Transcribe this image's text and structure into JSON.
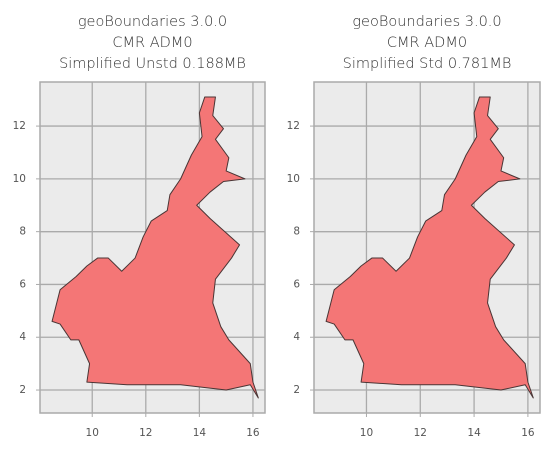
{
  "chart_data": [
    {
      "type": "map",
      "title": [
        "geoBoundaries 3.0.0",
        "CMR ADM0",
        "Simplified Unstd 0.188MB"
      ],
      "xlim": [
        8.05,
        16.45
      ],
      "ylim": [
        1.13,
        13.67
      ],
      "xticks": [
        10,
        12,
        14,
        16
      ],
      "yticks": [
        2,
        4,
        6,
        8,
        10,
        12
      ],
      "grid": true,
      "color": "#f47676",
      "boundary": {
        "x": [
          14.2,
          14.6,
          14.5,
          14.9,
          14.6,
          15.1,
          15.0,
          15.7,
          14.9,
          14.4,
          13.9,
          14.4,
          15.5,
          15.2,
          14.6,
          14.5,
          14.8,
          15.1,
          15.9,
          16.0,
          16.2,
          15.9,
          15.0,
          13.3,
          11.3,
          9.8,
          9.9,
          9.5,
          9.2,
          8.8,
          8.5,
          8.6,
          8.8,
          9.4,
          9.8,
          10.2,
          10.6,
          11.1,
          11.6,
          11.9,
          12.2,
          12.8,
          12.9,
          13.3,
          13.7,
          14.1,
          14.0,
          14.2
        ],
        "y": [
          13.1,
          13.1,
          12.4,
          11.9,
          11.5,
          10.8,
          10.3,
          10.0,
          9.9,
          9.5,
          9.0,
          8.5,
          7.5,
          7.0,
          6.2,
          5.3,
          4.4,
          3.9,
          3.0,
          2.3,
          1.7,
          2.2,
          2.0,
          2.2,
          2.2,
          2.3,
          3.0,
          3.9,
          3.9,
          4.5,
          4.6,
          5.0,
          5.8,
          6.3,
          6.7,
          7.0,
          7.0,
          6.5,
          7.0,
          7.8,
          8.4,
          8.8,
          9.4,
          10.0,
          10.9,
          11.6,
          12.5,
          13.1
        ]
      }
    },
    {
      "type": "map",
      "title": [
        "geoBoundaries 3.0.0",
        "CMR ADM0",
        "Simplified Std 0.781MB"
      ],
      "xlim": [
        8.05,
        16.45
      ],
      "ylim": [
        1.13,
        13.67
      ],
      "xticks": [
        10,
        12,
        14,
        16
      ],
      "yticks": [
        2,
        4,
        6,
        8,
        10,
        12
      ],
      "grid": true,
      "color": "#f47676",
      "boundary": {
        "x": [
          14.2,
          14.6,
          14.5,
          14.9,
          14.6,
          15.1,
          15.0,
          15.7,
          14.9,
          14.4,
          13.9,
          14.4,
          15.5,
          15.2,
          14.6,
          14.5,
          14.8,
          15.1,
          15.9,
          16.0,
          16.2,
          15.9,
          15.0,
          13.3,
          11.3,
          9.8,
          9.9,
          9.5,
          9.2,
          8.8,
          8.5,
          8.6,
          8.8,
          9.4,
          9.8,
          10.2,
          10.6,
          11.1,
          11.6,
          11.9,
          12.2,
          12.8,
          12.9,
          13.3,
          13.7,
          14.1,
          14.0,
          14.2
        ],
        "y": [
          13.1,
          13.1,
          12.4,
          11.9,
          11.5,
          10.8,
          10.3,
          10.0,
          9.9,
          9.5,
          9.0,
          8.5,
          7.5,
          7.0,
          6.2,
          5.3,
          4.4,
          3.9,
          3.0,
          2.3,
          1.7,
          2.2,
          2.0,
          2.2,
          2.2,
          2.3,
          3.0,
          3.9,
          3.9,
          4.5,
          4.6,
          5.0,
          5.8,
          6.3,
          6.7,
          7.0,
          7.0,
          6.5,
          7.0,
          7.8,
          8.4,
          8.8,
          9.4,
          10.0,
          10.9,
          11.6,
          12.5,
          13.1
        ]
      }
    }
  ]
}
